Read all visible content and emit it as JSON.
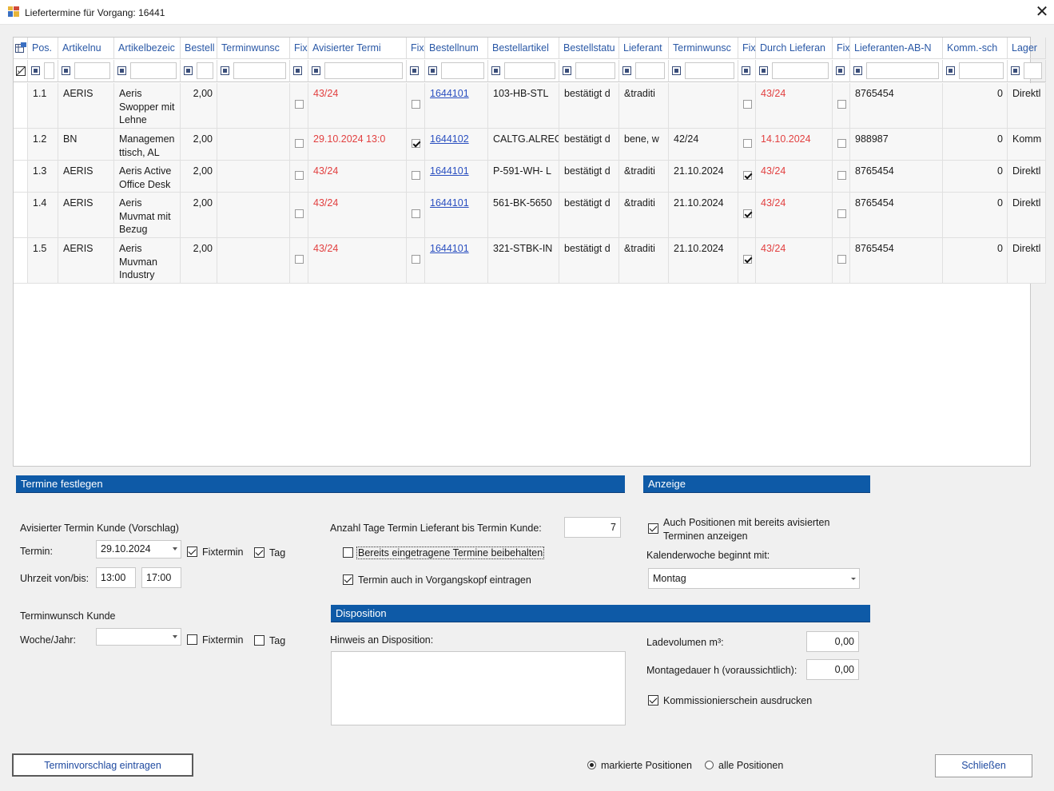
{
  "window": {
    "title": "Liefertermine für Vorgang: 16441",
    "close": "✕"
  },
  "grid": {
    "columns": [
      "Pos.",
      "Artikelnu",
      "Artikelbezeic",
      "Bestell",
      "Terminwunsc",
      "Fix",
      "Avisierter Termi",
      "Fix",
      "Bestellnum",
      "Bestellartikel",
      "Bestellstatu",
      "Lieferant",
      "Terminwunsc",
      "Fix",
      "Durch Lieferan",
      "Fix",
      "Lieferanten-AB-N",
      "Komm.-sch",
      "Lager"
    ],
    "rows": [
      {
        "pos": "1.1",
        "art": "AERIS",
        "bez": "Aeris Swopper mit Lehne",
        "menge": "2,00",
        "tw": "",
        "fix1": false,
        "avis": "43/24",
        "fix2": false,
        "bnr": "1644101",
        "bart": "103-HB-STL",
        "status": "bestätigt d",
        "lief": "&traditi",
        "tw2": "",
        "fix3": false,
        "durch": "43/24",
        "fix4": false,
        "ab": "8765454",
        "komm": "0",
        "lager": "Direktl"
      },
      {
        "pos": "1.2",
        "art": "BN",
        "bez": "Managemen ttisch, AL",
        "menge": "2,00",
        "tw": "",
        "fix1": false,
        "avis": "29.10.2024 13:0",
        "fix2": true,
        "bnr": "1644102",
        "bart": "CALTG.ALREC",
        "status": "bestätigt d",
        "lief": "bene, w",
        "tw2": "42/24",
        "fix3": false,
        "durch": "14.10.2024",
        "fix4": false,
        "ab": "988987",
        "komm": "0",
        "lager": "Komm"
      },
      {
        "pos": "1.3",
        "art": "AERIS",
        "bez": "Aeris Active Office Desk",
        "menge": "2,00",
        "tw": "",
        "fix1": false,
        "avis": "43/24",
        "fix2": false,
        "bnr": "1644101",
        "bart": "P-591-WH- L",
        "status": "bestätigt d",
        "lief": "&traditi",
        "tw2": "21.10.2024",
        "fix3": true,
        "durch": "43/24",
        "fix4": false,
        "ab": "8765454",
        "komm": "0",
        "lager": "Direktl"
      },
      {
        "pos": "1.4",
        "art": "AERIS",
        "bez": "Aeris Muvmat mit Bezug",
        "menge": "2,00",
        "tw": "",
        "fix1": false,
        "avis": "43/24",
        "fix2": false,
        "bnr": "1644101",
        "bart": "561-BK-5650",
        "status": "bestätigt d",
        "lief": "&traditi",
        "tw2": "21.10.2024",
        "fix3": true,
        "durch": "43/24",
        "fix4": false,
        "ab": "8765454",
        "komm": "0",
        "lager": "Direktl"
      },
      {
        "pos": "1.5",
        "art": "AERIS",
        "bez": "Aeris Muvman Industry",
        "menge": "2,00",
        "tw": "",
        "fix1": false,
        "avis": "43/24",
        "fix2": false,
        "bnr": "1644101",
        "bart": "321-STBK-IN",
        "status": "bestätigt d",
        "lief": "&traditi",
        "tw2": "21.10.2024",
        "fix3": true,
        "durch": "43/24",
        "fix4": false,
        "ab": "8765454",
        "komm": "0",
        "lager": "Direktl"
      }
    ]
  },
  "termine": {
    "header": "Termine festlegen",
    "avis_label": "Avisierter Termin Kunde (Vorschlag)",
    "termin_label": "Termin:",
    "termin_value": "29.10.2024",
    "fixtermin": "Fixtermin",
    "tag": "Tag",
    "uhrzeit_label": "Uhrzeit von/bis:",
    "von": "13:00",
    "bis": "17:00",
    "wunsch_label": "Terminwunsch Kunde",
    "woche_label": "Woche/Jahr:",
    "woche_value": "",
    "anzahl_label": "Anzahl Tage Termin Lieferant bis Termin Kunde:",
    "anzahl_value": "7",
    "beibehalten": "Bereits eingetragene Termine beibehalten",
    "vorgangskopf": "Termin auch in Vorgangskopf eintragen"
  },
  "anzeige": {
    "header": "Anzeige",
    "auch_pos": "Auch Positionen mit bereits avisierten Terminen anzeigen",
    "kw_label": "Kalenderwoche beginnt mit:",
    "kw_value": "Montag"
  },
  "disposition": {
    "header": "Disposition",
    "hinweis_label": "Hinweis an Disposition:",
    "hinweis_value": "",
    "ladevolumen_label": "Ladevolumen m³:",
    "ladevolumen_value": "0,00",
    "montage_label": "Montagedauer h (voraussichtlich):",
    "montage_value": "0,00",
    "kommission": "Kommissionierschein ausdrucken"
  },
  "footer": {
    "vorschlag_button": "Terminvorschlag eintragen",
    "radio_markiert": "markierte Positionen",
    "radio_alle": "alle Positionen",
    "close_button": "Schließen"
  }
}
